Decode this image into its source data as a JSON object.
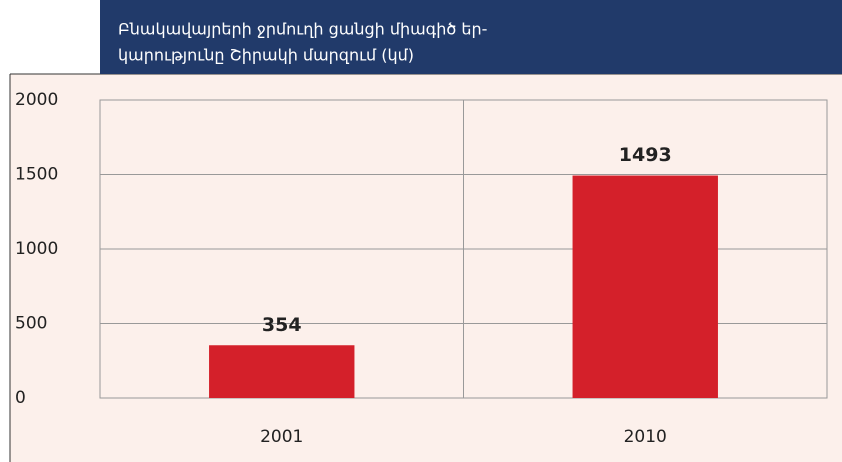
{
  "chart_data": {
    "type": "bar",
    "title": [
      "Բնակավայրերի ջրմուղի ցանցի միագիծ եր-",
      "կարությունը Շիրակի մարզում (կմ)"
    ],
    "categories": [
      "2001",
      "2010"
    ],
    "values": [
      354,
      1493
    ],
    "color": "#d4202a",
    "ylim": [
      0,
      2000
    ],
    "yticks": [
      0,
      500,
      1000,
      1500,
      2000
    ],
    "grid": true,
    "data_labels": true
  }
}
